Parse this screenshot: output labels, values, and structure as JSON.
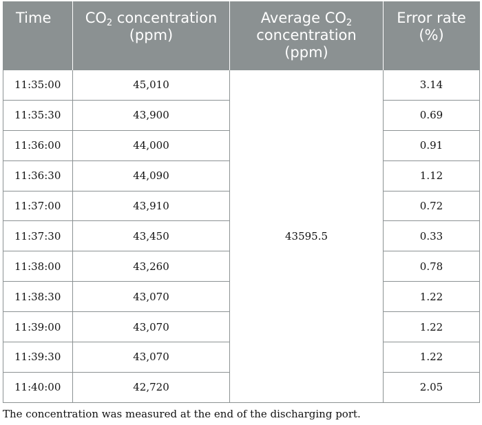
{
  "table": {
    "headers": {
      "time": "Time",
      "concentration": {
        "pre": "CO",
        "sub": "2",
        "post": " concentration (ppm)"
      },
      "average": {
        "pre": "Average CO",
        "sub": "2",
        "post": " concentration (ppm)"
      },
      "error": "Error rate (%)"
    },
    "average_value": "43595.5",
    "rows": [
      {
        "time": "11:35:00",
        "concentration": "45,010",
        "error": "3.14"
      },
      {
        "time": "11:35:30",
        "concentration": "43,900",
        "error": "0.69"
      },
      {
        "time": "11:36:00",
        "concentration": "44,000",
        "error": "0.91"
      },
      {
        "time": "11:36:30",
        "concentration": "44,090",
        "error": "1.12"
      },
      {
        "time": "11:37:00",
        "concentration": "43,910",
        "error": "0.72"
      },
      {
        "time": "11:37:30",
        "concentration": "43,450",
        "error": "0.33"
      },
      {
        "time": "11:38:00",
        "concentration": "43,260",
        "error": "0.78"
      },
      {
        "time": "11:38:30",
        "concentration": "43,070",
        "error": "1.22"
      },
      {
        "time": "11:39:00",
        "concentration": "43,070",
        "error": "1.22"
      },
      {
        "time": "11:39:30",
        "concentration": "43,070",
        "error": "1.22"
      },
      {
        "time": "11:40:00",
        "concentration": "42,720",
        "error": "2.05"
      }
    ]
  },
  "footnote": "The concentration was measured at the end of the discharging port.",
  "colors": {
    "header_background": "#8b9192",
    "header_text": "#ffffff",
    "grid_line": "#8b9192"
  }
}
